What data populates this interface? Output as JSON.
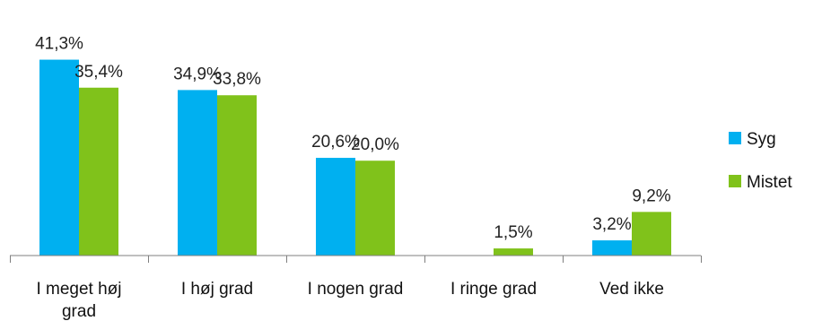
{
  "chart_data": {
    "type": "bar",
    "categories": [
      [
        "I meget høj",
        "grad"
      ],
      [
        "I høj grad"
      ],
      [
        "I nogen grad"
      ],
      [
        "I ringe grad"
      ],
      [
        "Ved ikke"
      ]
    ],
    "series": [
      {
        "name": "Syg",
        "color": "#00B0F0",
        "values": [
          41.3,
          34.9,
          20.6,
          null,
          3.2
        ],
        "labels": [
          "41,3%",
          "34,9%",
          "20,6%",
          "",
          "3,2%"
        ]
      },
      {
        "name": "Mistet",
        "color": "#80C21B",
        "values": [
          35.4,
          33.8,
          20.0,
          1.5,
          9.2
        ],
        "labels": [
          "35,4%",
          "33,8%",
          "20,0%",
          "1,5%",
          "9,2%"
        ]
      }
    ],
    "ylim": [
      0,
      45
    ],
    "grid": false,
    "legend": "right"
  }
}
